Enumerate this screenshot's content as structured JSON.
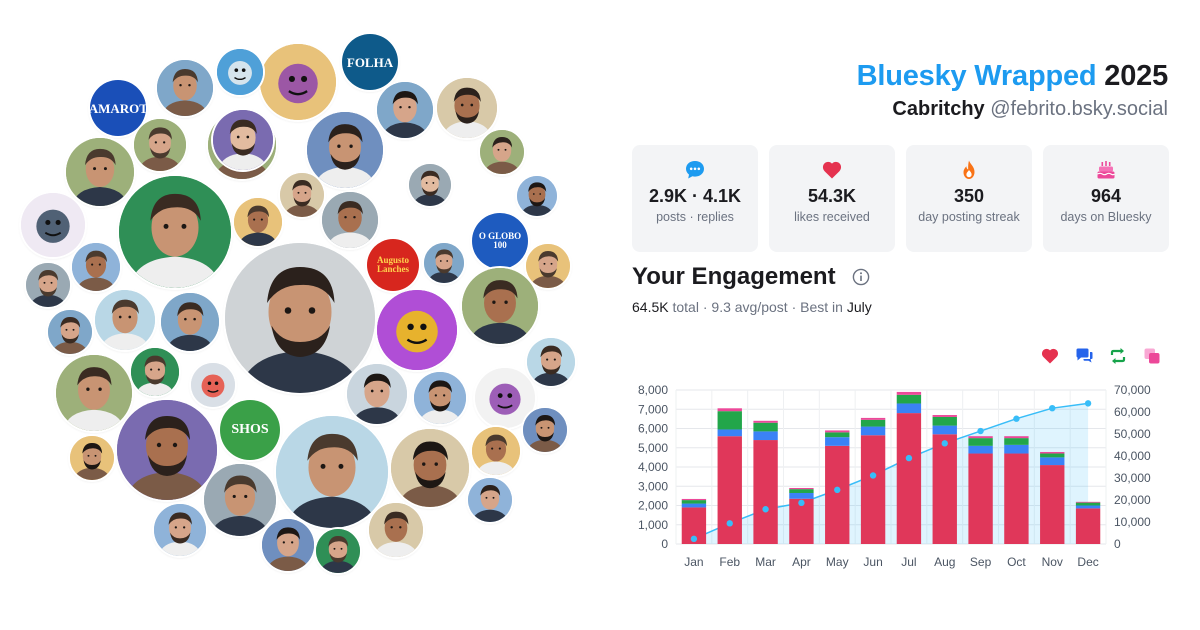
{
  "header": {
    "title_brand": "Bluesky Wrapped",
    "title_year": "2025",
    "display_name": "Cabritchy",
    "handle": "@febrito.bsky.social"
  },
  "stats": [
    {
      "icon": "speech-bubble-icon",
      "value": "2.9K · 4.1K",
      "label": "posts · replies",
      "color": "#1d9bf0"
    },
    {
      "icon": "heart-icon",
      "value": "54.3K",
      "label": "likes received",
      "color": "#e5324f"
    },
    {
      "icon": "flame-icon",
      "value": "350",
      "label": "day posting streak",
      "color": "#f97316"
    },
    {
      "icon": "cake-icon",
      "value": "964",
      "label": "days on Bluesky",
      "color": "#ec4899"
    }
  ],
  "engagement": {
    "title": "Your Engagement",
    "total_value": "64.5K",
    "total_label": "total",
    "avg": "9.3 avg/post",
    "best_prefix": "Best in",
    "best_month": "July",
    "legend_icons": [
      {
        "icon": "heart-icon",
        "color": "#e5324f"
      },
      {
        "icon": "reply-icon",
        "color": "#2563eb"
      },
      {
        "icon": "repost-icon",
        "color": "#16a34a"
      },
      {
        "icon": "quote-icon",
        "color": "#ec4899"
      }
    ]
  },
  "avatars": [
    {
      "label": "FOLHA",
      "bg": "#0e5a8a",
      "fg": "#ffffff"
    },
    {
      "label": "O GLOBO\n100",
      "bg": "#1e5bbf",
      "fg": "#ffffff"
    },
    {
      "label": "CAMAROTE",
      "bg": "#1a4fb8",
      "fg": "#ffffff"
    },
    {
      "label": "Augusto\nLanches",
      "bg": "#d7261e",
      "fg": "#ffd34d"
    },
    {
      "label": "SHOS",
      "bg": "#3aa048",
      "fg": "#ffffff"
    }
  ],
  "chart_data": {
    "type": "bar",
    "categories": [
      "Jan",
      "Feb",
      "Mar",
      "Apr",
      "May",
      "Jun",
      "Jul",
      "Aug",
      "Sep",
      "Oct",
      "Nov",
      "Dec"
    ],
    "series": [
      {
        "values": [
          1900,
          5600,
          5400,
          2350,
          5100,
          5650,
          6800,
          5700,
          4700,
          4700,
          4100,
          1850
        ],
        "color": "#e0375a"
      },
      {
        "values": [
          200,
          350,
          450,
          300,
          450,
          450,
          500,
          450,
          400,
          450,
          400,
          150
        ],
        "color": "#3b82f6"
      },
      {
        "values": [
          180,
          950,
          450,
          200,
          250,
          350,
          450,
          450,
          400,
          350,
          200,
          150
        ],
        "color": "#22a64a"
      },
      {
        "values": [
          60,
          150,
          100,
          60,
          100,
          100,
          150,
          100,
          100,
          100,
          80,
          40
        ],
        "color": "#ec4899"
      }
    ],
    "cumulative": {
      "values": [
        2340,
        9390,
        15790,
        18700,
        24600,
        31150,
        39050,
        45750,
        51350,
        56950,
        61730,
        63920
      ],
      "color": "#38bdf8"
    },
    "ylim": [
      0,
      8000
    ],
    "y_ticks": [
      "8,000",
      "7,000",
      "6,000",
      "5,000",
      "4,000",
      "3,000",
      "2,000",
      "1,000",
      "0"
    ],
    "y2lim": [
      0,
      70000
    ],
    "y2_ticks": [
      "70,000",
      "60,000",
      "50,000",
      "40,000",
      "30,000",
      "20,000",
      "10,000",
      "0"
    ],
    "grid": true
  }
}
